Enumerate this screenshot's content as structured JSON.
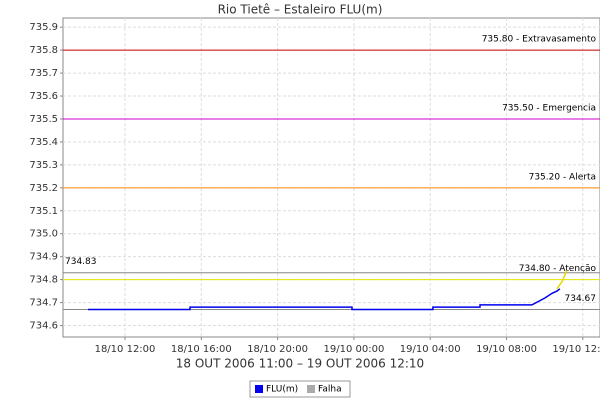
{
  "chart_data": {
    "type": "line",
    "title": "Rio Tietê – Estaleiro FLU(m)",
    "x_label": "18 OUT 2006 11:00 – 19 OUT 2006 12:10",
    "xlim": [
      8.75,
      36.9
    ],
    "xticks": [
      {
        "value": 12,
        "label": "18/10 12:00"
      },
      {
        "value": 16,
        "label": "18/10 16:00"
      },
      {
        "value": 20,
        "label": "18/10 20:00"
      },
      {
        "value": 24,
        "label": "19/10 00:00"
      },
      {
        "value": 28,
        "label": "19/10 04:00"
      },
      {
        "value": 32,
        "label": "19/10 08:00"
      },
      {
        "value": 36,
        "label": "19/10 12:00"
      }
    ],
    "ylim": [
      734.55,
      735.94
    ],
    "yticks": [
      734.6,
      734.7,
      734.8,
      734.9,
      {
        "value": 735,
        "label": "735.0"
      },
      735.1,
      735.2,
      735.3,
      735.4,
      735.5,
      735.6,
      735.7,
      735.8,
      735.9
    ],
    "grid": true,
    "series": [
      {
        "name": "FLU(m)",
        "color": "#0000ee",
        "x": [
          10.06,
          15.41,
          15.41,
          23.9,
          23.9,
          28.14,
          28.14,
          30.61,
          30.61,
          33.33,
          34.01,
          34.38,
          34.64,
          34.8
        ],
        "values": [
          734.67,
          734.67,
          734.68,
          734.68,
          734.67,
          734.67,
          734.68,
          734.68,
          734.69,
          734.69,
          734.72,
          734.74,
          734.75,
          734.76
        ]
      },
      {
        "color": "#e6d800",
        "x": [
          34.64,
          34.9,
          35.16
        ],
        "values": [
          734.76,
          734.79,
          734.84
        ]
      },
      {
        "name": "Falha",
        "color": "#aaaaaa",
        "x": [],
        "values": []
      }
    ],
    "reference_lines": [
      {
        "value": 735.8,
        "label": "735.80 - Extravasamento",
        "color": "#cc0000",
        "side": "right"
      },
      {
        "value": 735.5,
        "label": "735.50 - Emergencia",
        "color": "#cc00cc",
        "side": "right"
      },
      {
        "value": 735.2,
        "label": "735.20 - Alerta",
        "color": "#ff8800",
        "side": "right"
      },
      {
        "value": 734.8,
        "label": "734.80 - Atenção",
        "color": "#e6e600",
        "side": "right"
      },
      {
        "value": 734.83,
        "label": "734.83",
        "color": "#888888",
        "side": "left"
      },
      {
        "value": 734.67,
        "label": "734.67",
        "color": "#888888",
        "side": "right"
      }
    ]
  }
}
